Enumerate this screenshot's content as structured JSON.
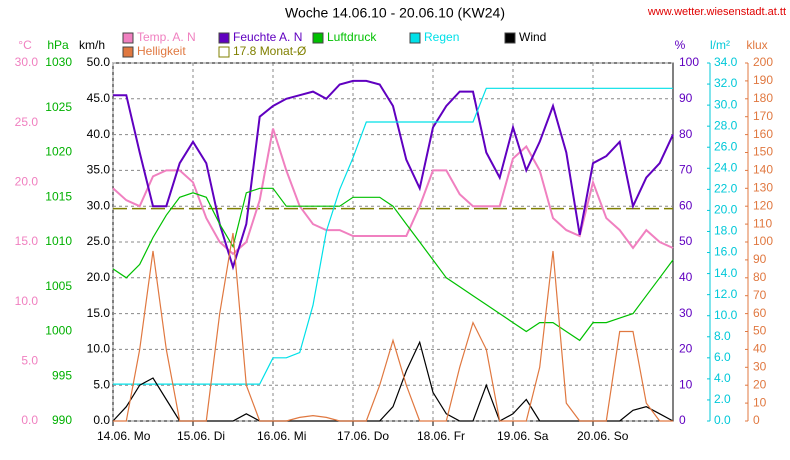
{
  "chart_data": {
    "type": "line",
    "title": "Woche 14.06.10 - 20.06.10 (KW24)",
    "source": "www.wetter.wiesenstadt.at.tt",
    "x": [
      0,
      4,
      8,
      12,
      16,
      20,
      24,
      28,
      32,
      36,
      40,
      44,
      48,
      52,
      56,
      60,
      64,
      68,
      72,
      76,
      80,
      84,
      88,
      92,
      96,
      100,
      104,
      108,
      112,
      116,
      120,
      124,
      128,
      132,
      136,
      140,
      144,
      148,
      152,
      156,
      160,
      164,
      168
    ],
    "xlim": [
      0,
      168
    ],
    "xticks": [
      {
        "value": 0,
        "label": "14.06. Mo"
      },
      {
        "value": 24,
        "label": "15.06. Di"
      },
      {
        "value": 48,
        "label": "16.06. Mi"
      },
      {
        "value": 72,
        "label": "17.06. Do"
      },
      {
        "value": 96,
        "label": "18.06. Fr"
      },
      {
        "value": 120,
        "label": "19.06. Sa"
      },
      {
        "value": 144,
        "label": "20.06. So"
      }
    ],
    "grid": true,
    "axes": [
      {
        "name": "°C",
        "color": "#f080c0",
        "lim": [
          0,
          30
        ],
        "ticks": [
          {
            "value": 0,
            "label": "0.0"
          },
          {
            "value": 5,
            "label": "5.0"
          },
          {
            "value": 10,
            "label": "10.0"
          },
          {
            "value": 15,
            "label": "15.0"
          },
          {
            "value": 20,
            "label": "20.0"
          },
          {
            "value": 25,
            "label": "25.0"
          },
          {
            "value": 30,
            "label": "30.0"
          }
        ]
      },
      {
        "name": "hPa",
        "color": "#00b000",
        "lim": [
          990,
          1030
        ],
        "ticks": [
          990,
          995,
          1000,
          1005,
          1010,
          1015,
          1020,
          1025,
          1030
        ]
      },
      {
        "name": "km/h",
        "color": "#000000",
        "lim": [
          0,
          50
        ],
        "ticks": [
          {
            "value": 0,
            "label": "0.0"
          },
          {
            "value": 5,
            "label": "5.0"
          },
          {
            "value": 10,
            "label": "10.0"
          },
          {
            "value": 15,
            "label": "15.0"
          },
          {
            "value": 20,
            "label": "20.0"
          },
          {
            "value": 25,
            "label": "25.0"
          },
          {
            "value": 30,
            "label": "30.0"
          },
          {
            "value": 35,
            "label": "35.0"
          },
          {
            "value": 40,
            "label": "40.0"
          },
          {
            "value": 45,
            "label": "45.0"
          },
          {
            "value": 50,
            "label": "50.0"
          }
        ]
      },
      {
        "name": "%",
        "color": "#6000c0",
        "lim": [
          0,
          100
        ],
        "ticks": [
          0,
          10,
          20,
          30,
          40,
          50,
          60,
          70,
          80,
          90,
          100
        ]
      },
      {
        "name": "l/m²",
        "color": "#00c8d8",
        "lim": [
          0,
          34
        ],
        "ticks": [
          {
            "value": 0,
            "label": "0.0"
          },
          {
            "value": 2,
            "label": "2.0"
          },
          {
            "value": 4,
            "label": "4.0"
          },
          {
            "value": 6,
            "label": "6.0"
          },
          {
            "value": 8,
            "label": "8.0"
          },
          {
            "value": 10,
            "label": "10.0"
          },
          {
            "value": 12,
            "label": "12.0"
          },
          {
            "value": 14,
            "label": "14.0"
          },
          {
            "value": 16,
            "label": "16.0"
          },
          {
            "value": 18,
            "label": "18.0"
          },
          {
            "value": 20,
            "label": "20.0"
          },
          {
            "value": 22,
            "label": "22.0"
          },
          {
            "value": 24,
            "label": "24.0"
          },
          {
            "value": 26,
            "label": "26.0"
          },
          {
            "value": 28,
            "label": "28.0"
          },
          {
            "value": 30,
            "label": "30.0"
          },
          {
            "value": 32,
            "label": "32.0"
          },
          {
            "value": 34,
            "label": "34.0"
          }
        ]
      },
      {
        "name": "klux",
        "color": "#e07840",
        "lim": [
          0,
          200
        ],
        "ticks": [
          0,
          10,
          20,
          30,
          40,
          50,
          60,
          70,
          80,
          90,
          100,
          110,
          120,
          130,
          140,
          150,
          160,
          170,
          180,
          190,
          200
        ]
      }
    ],
    "series": [
      {
        "name": "Temp. A. N",
        "color": "#f080c0",
        "axis": 0,
        "values": [
          19.5,
          18.5,
          18,
          20.5,
          21,
          21,
          20,
          17,
          15,
          14,
          15,
          18.5,
          24.5,
          21,
          18,
          16.5,
          16,
          16,
          15.5,
          15.5,
          15.5,
          15.5,
          15.5,
          18,
          21,
          21,
          19,
          18,
          18,
          18,
          22,
          23,
          21,
          17,
          16,
          15.5,
          20,
          17,
          16,
          14.5,
          16,
          15,
          14.5
        ]
      },
      {
        "name": "Feuchte A. N",
        "color": "#6000c0",
        "axis": 3,
        "values": [
          91,
          91,
          75,
          60,
          60,
          72,
          78,
          72,
          55,
          43,
          55,
          85,
          88,
          90,
          91,
          92,
          90,
          94,
          95,
          95,
          94,
          88,
          73,
          65,
          82,
          88,
          92,
          92,
          75,
          68,
          82,
          70,
          78,
          88,
          75,
          52,
          72,
          74,
          78,
          60,
          68,
          72,
          80
        ]
      },
      {
        "name": "Luftdruck",
        "color": "#00c000",
        "axis": 1,
        "values": [
          1007,
          1006,
          1007.5,
          1010.5,
          1013,
          1015,
          1015.5,
          1015,
          1012,
          1009.5,
          1015.5,
          1016,
          1016,
          1014,
          1014,
          1014,
          1014,
          1014,
          1015,
          1015,
          1015,
          1014,
          1012,
          1010,
          1008,
          1006,
          1005,
          1004,
          1003,
          1002,
          1001,
          1000,
          1001,
          1001,
          1000,
          999,
          1001,
          1001,
          1001.5,
          1002,
          1004,
          1006,
          1008
        ]
      },
      {
        "name": "Regen",
        "color": "#00e0e8",
        "axis": 4,
        "values": [
          3.5,
          3.5,
          3.5,
          3.5,
          3.5,
          3.5,
          3.5,
          3.5,
          3.5,
          3.5,
          3.5,
          3.5,
          6,
          6,
          6.5,
          11,
          18,
          22,
          25,
          28.4,
          28.4,
          28.4,
          28.4,
          28.4,
          28.4,
          28.4,
          28.4,
          28.4,
          31.6,
          31.6,
          31.6,
          31.6,
          31.6,
          31.6,
          31.6,
          31.6,
          31.6,
          31.6,
          31.6,
          31.6,
          31.6,
          31.6,
          31.6
        ]
      },
      {
        "name": "Wind",
        "color": "#000000",
        "axis": 2,
        "values": [
          0,
          2,
          5,
          6,
          3,
          0,
          0,
          0,
          0,
          0,
          1,
          0,
          0,
          0,
          0,
          0,
          0,
          0,
          0,
          0,
          0,
          2,
          7,
          11,
          4,
          1,
          0,
          0,
          5,
          0,
          1,
          3,
          0,
          0,
          0,
          0,
          0,
          0,
          0,
          1.5,
          2,
          1,
          0
        ]
      },
      {
        "name": "Helligkeit",
        "color": "#e07840",
        "axis": 5,
        "values": [
          0,
          0,
          40,
          95,
          40,
          0,
          0,
          0,
          60,
          105,
          20,
          0,
          0,
          0,
          2,
          3,
          2,
          0,
          0,
          0,
          20,
          45,
          20,
          0,
          0,
          0,
          30,
          55,
          40,
          0,
          0,
          0,
          30,
          95,
          10,
          0,
          0,
          0,
          50,
          50,
          10,
          0,
          0
        ]
      }
    ],
    "reference_line": {
      "name": "17.8 Monat-Ø",
      "value": 17.8,
      "axis": 0,
      "color": "#808000"
    }
  }
}
